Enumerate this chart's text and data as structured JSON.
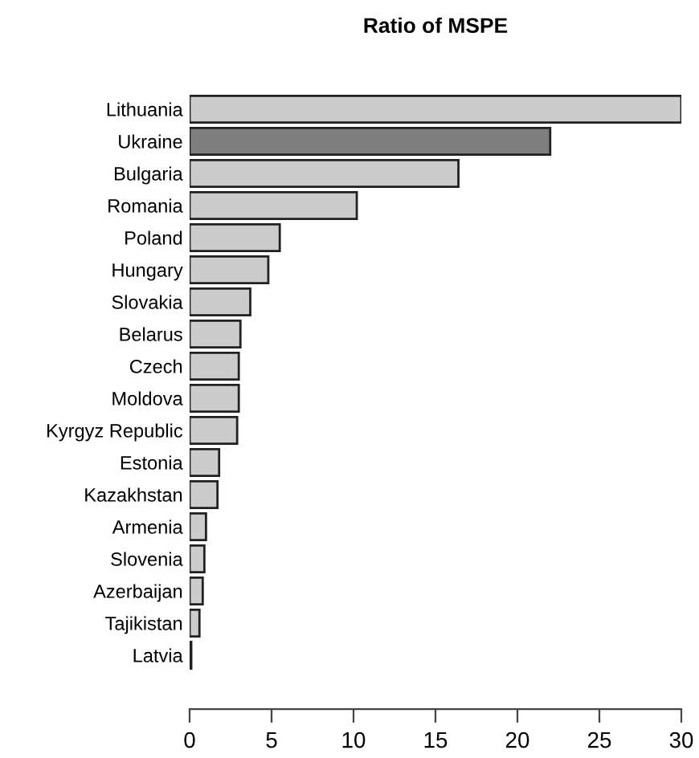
{
  "chart_data": {
    "type": "bar",
    "orientation": "horizontal",
    "title": "Ratio of MSPE",
    "categories": [
      "Lithuania",
      "Ukraine",
      "Bulgaria",
      "Romania",
      "Poland",
      "Hungary",
      "Slovakia",
      "Belarus",
      "Czech",
      "Moldova",
      "Kyrgyz Republic",
      "Estonia",
      "Kazakhstan",
      "Armenia",
      "Slovenia",
      "Azerbaijan",
      "Tajikistan",
      "Latvia"
    ],
    "values": [
      30.0,
      22.0,
      16.4,
      10.2,
      5.5,
      4.8,
      3.7,
      3.1,
      3.0,
      3.0,
      2.9,
      1.8,
      1.7,
      1.0,
      0.9,
      0.8,
      0.6,
      0.1
    ],
    "colors": [
      "#cccccc",
      "#7f7f7f",
      "#cccccc",
      "#cccccc",
      "#cccccc",
      "#cccccc",
      "#cccccc",
      "#cccccc",
      "#cccccc",
      "#cccccc",
      "#cccccc",
      "#cccccc",
      "#cccccc",
      "#cccccc",
      "#cccccc",
      "#cccccc",
      "#cccccc",
      "#cccccc"
    ],
    "xlim": [
      0,
      30
    ],
    "xticks": [
      0,
      5,
      10,
      15,
      20,
      25,
      30
    ],
    "grid": false
  }
}
